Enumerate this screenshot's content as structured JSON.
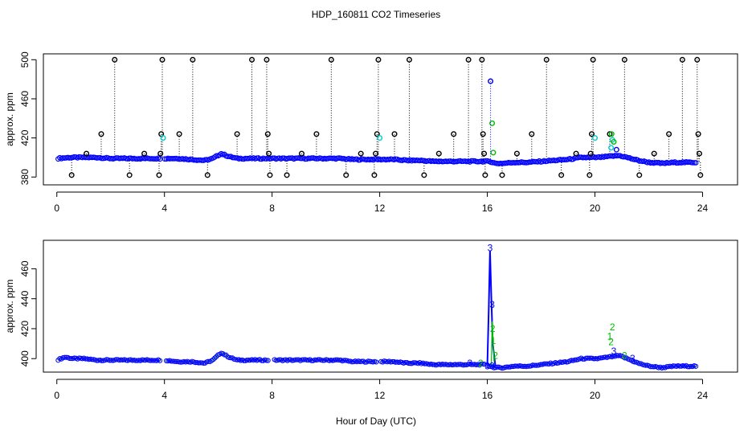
{
  "title": "HDP_160811  CO2 Timeseries",
  "xlabel": "Hour of Day (UTC)",
  "colors": {
    "raw": "#000000",
    "flagged": "#00cccc",
    "avg": "#0000ff",
    "alt": "#00bb00"
  },
  "chart_data": [
    {
      "type": "scatter",
      "ylabel": "approx. ppm",
      "xlim": [
        0,
        24
      ],
      "ylim": [
        372,
        506
      ],
      "xticks": [
        0,
        4,
        8,
        12,
        16,
        20,
        24
      ],
      "yticks": [
        380,
        420,
        460,
        500
      ],
      "xtick_labels": [
        "0",
        "4",
        "8",
        "12",
        "16",
        "20",
        "24"
      ],
      "ytick_labels": [
        "380",
        "420",
        "460",
        "500"
      ],
      "baseline": [
        [
          0.0,
          399
        ],
        [
          0.5,
          400
        ],
        [
          1.0,
          400
        ],
        [
          1.5,
          400
        ],
        [
          2.0,
          399
        ],
        [
          2.5,
          399
        ],
        [
          3.0,
          399
        ],
        [
          3.5,
          399
        ],
        [
          3.8,
          399
        ],
        [
          4.0,
          399
        ],
        [
          4.5,
          399
        ],
        [
          5.0,
          398
        ],
        [
          5.5,
          397
        ],
        [
          5.8,
          399
        ],
        [
          6.1,
          404
        ],
        [
          6.4,
          401
        ],
        [
          6.7,
          399
        ],
        [
          7.0,
          399
        ],
        [
          7.5,
          399
        ],
        [
          7.8,
          399
        ],
        [
          8.0,
          399
        ],
        [
          8.5,
          399
        ],
        [
          9.0,
          399
        ],
        [
          9.5,
          399
        ],
        [
          10.0,
          399
        ],
        [
          10.5,
          399
        ],
        [
          11.0,
          398
        ],
        [
          11.5,
          398
        ],
        [
          11.9,
          398
        ],
        [
          12.0,
          398
        ],
        [
          12.5,
          398
        ],
        [
          13.0,
          397
        ],
        [
          13.5,
          397
        ],
        [
          14.0,
          396
        ],
        [
          14.5,
          396
        ],
        [
          15.0,
          396
        ],
        [
          15.5,
          396
        ],
        [
          15.9,
          396
        ],
        [
          16.1,
          396
        ],
        [
          16.3,
          394
        ],
        [
          16.6,
          394
        ],
        [
          17.0,
          395
        ],
        [
          17.5,
          395
        ],
        [
          18.0,
          396
        ],
        [
          18.5,
          397
        ],
        [
          19.0,
          398
        ],
        [
          19.5,
          400
        ],
        [
          19.9,
          400
        ],
        [
          20.1,
          400
        ],
        [
          20.5,
          401
        ],
        [
          20.9,
          402
        ],
        [
          21.2,
          400
        ],
        [
          21.6,
          397
        ],
        [
          22.0,
          395
        ],
        [
          22.5,
          394
        ],
        [
          23.0,
          395
        ],
        [
          23.5,
          395
        ],
        [
          23.8,
          395
        ]
      ],
      "raw_spikes": [
        {
          "x": 0.55,
          "y": 382
        },
        {
          "x": 1.1,
          "y": 404
        },
        {
          "x": 1.65,
          "y": 424
        },
        {
          "x": 2.15,
          "y": 500
        },
        {
          "x": 2.7,
          "y": 382
        },
        {
          "x": 3.25,
          "y": 404
        },
        {
          "x": 3.8,
          "y": 382
        },
        {
          "x": 3.85,
          "y": 404
        },
        {
          "x": 3.88,
          "y": 424
        },
        {
          "x": 3.92,
          "y": 500
        },
        {
          "x": 4.55,
          "y": 424
        },
        {
          "x": 5.05,
          "y": 500
        },
        {
          "x": 5.6,
          "y": 382
        },
        {
          "x": 6.7,
          "y": 424
        },
        {
          "x": 7.25,
          "y": 500
        },
        {
          "x": 7.8,
          "y": 500
        },
        {
          "x": 7.84,
          "y": 424
        },
        {
          "x": 7.88,
          "y": 404
        },
        {
          "x": 7.92,
          "y": 382
        },
        {
          "x": 8.55,
          "y": 382
        },
        {
          "x": 9.1,
          "y": 404
        },
        {
          "x": 9.65,
          "y": 424
        },
        {
          "x": 10.2,
          "y": 500
        },
        {
          "x": 10.75,
          "y": 382
        },
        {
          "x": 11.3,
          "y": 404
        },
        {
          "x": 11.8,
          "y": 382
        },
        {
          "x": 11.85,
          "y": 404
        },
        {
          "x": 11.9,
          "y": 424
        },
        {
          "x": 11.95,
          "y": 500
        },
        {
          "x": 12.55,
          "y": 424
        },
        {
          "x": 13.1,
          "y": 500
        },
        {
          "x": 13.65,
          "y": 382
        },
        {
          "x": 14.2,
          "y": 404
        },
        {
          "x": 14.75,
          "y": 424
        },
        {
          "x": 15.3,
          "y": 500
        },
        {
          "x": 15.8,
          "y": 500
        },
        {
          "x": 15.84,
          "y": 424
        },
        {
          "x": 15.88,
          "y": 404
        },
        {
          "x": 15.92,
          "y": 382
        },
        {
          "x": 16.55,
          "y": 382
        },
        {
          "x": 17.1,
          "y": 404
        },
        {
          "x": 17.65,
          "y": 424
        },
        {
          "x": 18.2,
          "y": 500
        },
        {
          "x": 18.75,
          "y": 382
        },
        {
          "x": 19.3,
          "y": 404
        },
        {
          "x": 19.8,
          "y": 382
        },
        {
          "x": 19.84,
          "y": 404
        },
        {
          "x": 19.88,
          "y": 424
        },
        {
          "x": 19.93,
          "y": 500
        },
        {
          "x": 20.55,
          "y": 424
        },
        {
          "x": 21.1,
          "y": 500
        },
        {
          "x": 21.65,
          "y": 382
        },
        {
          "x": 22.2,
          "y": 404
        },
        {
          "x": 22.75,
          "y": 424
        },
        {
          "x": 23.25,
          "y": 500
        },
        {
          "x": 23.8,
          "y": 500
        },
        {
          "x": 23.84,
          "y": 424
        },
        {
          "x": 23.88,
          "y": 404
        },
        {
          "x": 23.92,
          "y": 382
        }
      ],
      "cyan_points": [
        {
          "x": 3.95,
          "y": 420
        },
        {
          "x": 12.0,
          "y": 420
        },
        {
          "x": 20.0,
          "y": 420
        },
        {
          "x": 20.6,
          "y": 410
        },
        {
          "x": 20.65,
          "y": 418
        }
      ],
      "event_points": [
        {
          "x": 16.12,
          "y": 478,
          "color": "avg"
        },
        {
          "x": 16.18,
          "y": 435,
          "color": "alt"
        },
        {
          "x": 16.22,
          "y": 405,
          "color": "alt"
        },
        {
          "x": 20.62,
          "y": 424,
          "color": "alt"
        },
        {
          "x": 20.7,
          "y": 416,
          "color": "alt"
        },
        {
          "x": 20.8,
          "y": 408,
          "color": "avg"
        }
      ]
    },
    {
      "type": "scatter",
      "ylabel": "approx. ppm",
      "xlim": [
        0,
        24
      ],
      "ylim": [
        391,
        479
      ],
      "xticks": [
        0,
        4,
        8,
        12,
        16,
        20,
        24
      ],
      "yticks": [
        400,
        420,
        440,
        460
      ],
      "xtick_labels": [
        "0",
        "4",
        "8",
        "12",
        "16",
        "20",
        "24"
      ],
      "ytick_labels": [
        "400",
        "420",
        "440",
        "460"
      ],
      "gaps": [
        [
          3.85,
          4.05
        ],
        [
          7.85,
          8.05
        ],
        [
          11.9,
          12.05
        ],
        [
          15.9,
          16.0
        ]
      ],
      "baseline": [
        [
          0.0,
          399
        ],
        [
          0.3,
          401
        ],
        [
          0.6,
          400
        ],
        [
          1.0,
          400
        ],
        [
          1.5,
          399
        ],
        [
          2.0,
          399
        ],
        [
          2.5,
          399
        ],
        [
          3.0,
          399
        ],
        [
          3.5,
          399
        ],
        [
          3.8,
          399
        ],
        [
          4.0,
          399
        ],
        [
          4.5,
          398
        ],
        [
          5.0,
          398
        ],
        [
          5.5,
          397
        ],
        [
          5.8,
          399
        ],
        [
          6.1,
          404
        ],
        [
          6.4,
          401
        ],
        [
          6.7,
          399
        ],
        [
          7.0,
          399
        ],
        [
          7.5,
          399
        ],
        [
          7.8,
          399
        ],
        [
          8.0,
          399
        ],
        [
          8.5,
          399
        ],
        [
          9.0,
          399
        ],
        [
          9.5,
          399
        ],
        [
          10.0,
          399
        ],
        [
          10.5,
          399
        ],
        [
          11.0,
          398
        ],
        [
          11.5,
          398
        ],
        [
          11.9,
          398
        ],
        [
          12.0,
          398
        ],
        [
          12.5,
          398
        ],
        [
          13.0,
          397
        ],
        [
          13.5,
          397
        ],
        [
          14.0,
          396
        ],
        [
          14.5,
          396
        ],
        [
          15.0,
          396
        ],
        [
          15.5,
          396
        ],
        [
          15.9,
          396
        ],
        [
          16.3,
          394
        ],
        [
          16.6,
          394
        ],
        [
          17.0,
          395
        ],
        [
          17.5,
          395
        ],
        [
          18.0,
          396
        ],
        [
          18.5,
          397
        ],
        [
          19.0,
          398
        ],
        [
          19.5,
          400
        ],
        [
          19.9,
          400
        ],
        [
          20.1,
          400
        ],
        [
          20.5,
          401
        ],
        [
          20.9,
          402
        ],
        [
          21.2,
          400
        ],
        [
          21.6,
          397
        ],
        [
          22.0,
          395
        ],
        [
          22.5,
          394
        ],
        [
          23.0,
          395
        ],
        [
          23.5,
          395
        ],
        [
          23.8,
          395
        ]
      ],
      "spike": [
        [
          16.0,
          396
        ],
        [
          16.05,
          430
        ],
        [
          16.1,
          472
        ],
        [
          16.15,
          440
        ],
        [
          16.2,
          410
        ],
        [
          16.3,
          395
        ]
      ],
      "glyphs": [
        {
          "x": 16.1,
          "y": 474,
          "t": "3",
          "color": "avg"
        },
        {
          "x": 16.18,
          "y": 436,
          "t": "3",
          "color": "avg"
        },
        {
          "x": 16.2,
          "y": 420,
          "t": "2",
          "color": "alt"
        },
        {
          "x": 16.22,
          "y": 412,
          "t": "1",
          "color": "alt"
        },
        {
          "x": 16.3,
          "y": 402,
          "t": "2",
          "color": "alt"
        },
        {
          "x": 16.0,
          "y": 395,
          "t": "3",
          "color": "avg"
        },
        {
          "x": 16.18,
          "y": 395,
          "t": "3",
          "color": "avg"
        },
        {
          "x": 15.35,
          "y": 397,
          "t": "3",
          "color": "avg"
        },
        {
          "x": 15.75,
          "y": 397,
          "t": "2",
          "color": "alt"
        },
        {
          "x": 20.65,
          "y": 421,
          "t": "2",
          "color": "alt"
        },
        {
          "x": 20.55,
          "y": 415,
          "t": "1",
          "color": "alt"
        },
        {
          "x": 20.6,
          "y": 411,
          "t": "2",
          "color": "alt"
        },
        {
          "x": 20.7,
          "y": 405,
          "t": "3",
          "color": "avg"
        },
        {
          "x": 21.1,
          "y": 402,
          "t": "2",
          "color": "alt"
        },
        {
          "x": 21.4,
          "y": 400,
          "t": "3",
          "color": "avg"
        }
      ]
    }
  ]
}
